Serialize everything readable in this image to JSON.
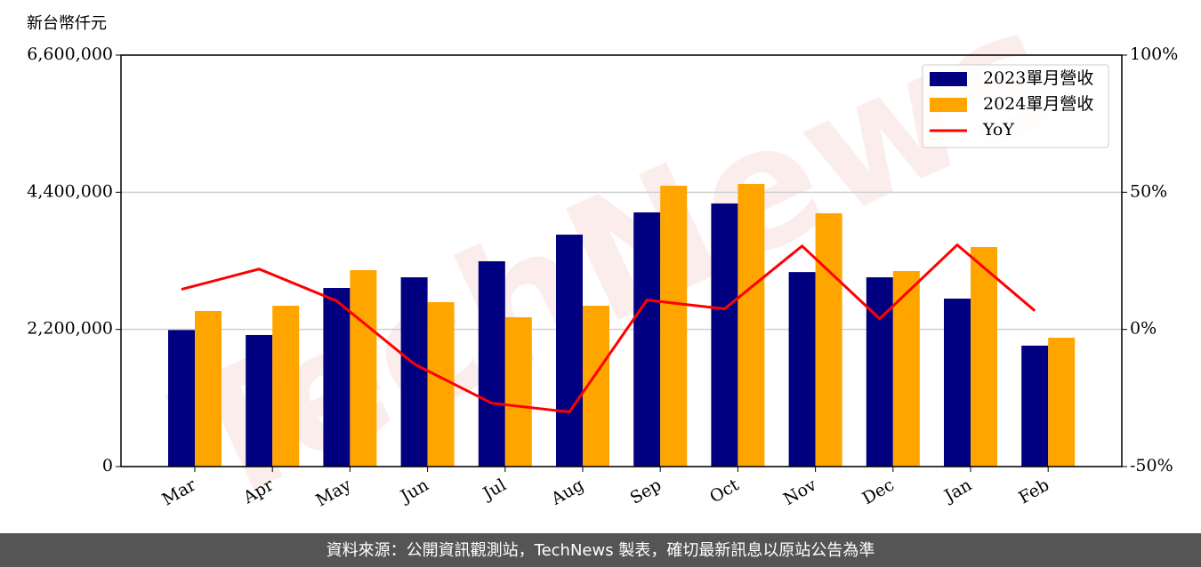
{
  "chart_data": {
    "type": "bar",
    "y_label": "新台幣仟元",
    "watermark": "TechNews",
    "footer": "資料來源：公開資訊觀測站，TechNews 製表，確切最新訊息以原站公告為準",
    "categories": [
      "Mar",
      "Apr",
      "May",
      "Jun",
      "Jul",
      "Aug",
      "Sep",
      "Oct",
      "Nov",
      "Dec",
      "Jan",
      "Feb"
    ],
    "series": [
      {
        "name": "2023單月營收",
        "color": "#000080",
        "type": "bar",
        "values": [
          2190000,
          2110000,
          2865000,
          3036000,
          3293000,
          3720000,
          4077000,
          4220000,
          3120000,
          3036000,
          2694000,
          1940000
        ]
      },
      {
        "name": "2024單月營收",
        "color": "#ffa500",
        "type": "bar",
        "values": [
          2495000,
          2580000,
          3150000,
          2637000,
          2395000,
          2580000,
          4505000,
          4533000,
          4063000,
          3136000,
          3521000,
          2067000
        ]
      },
      {
        "name": "YoY",
        "color": "#ff0000",
        "type": "line",
        "axis": "y2",
        "values": [
          14.6,
          22,
          10.4,
          -12.6,
          -26.9,
          -30.1,
          10.7,
          7.5,
          30.4,
          3.9,
          30.8,
          6.8
        ]
      }
    ],
    "ylim": [
      0,
      6600000
    ],
    "yticks": [
      0,
      {
        "value": 2200000,
        "label": "2,200,000"
      },
      {
        "value": 4400000,
        "label": "4,400,000"
      },
      {
        "value": 6600000,
        "label": "6,600,000"
      }
    ],
    "y2lim": [
      -50,
      100
    ],
    "y2ticks": [
      {
        "value": -50,
        "label": "-50%"
      },
      {
        "value": 0,
        "label": "0%"
      },
      {
        "value": 50,
        "label": "50%"
      },
      {
        "value": 100,
        "label": "100%"
      }
    ],
    "grid": true,
    "legend": "upper right"
  }
}
